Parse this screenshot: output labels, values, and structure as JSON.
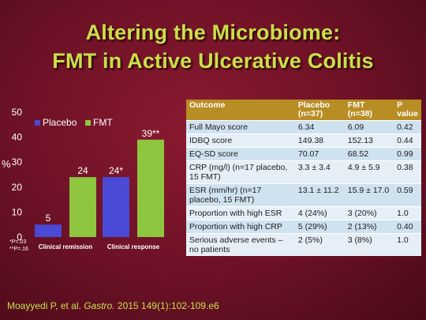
{
  "title_line1": "Altering the Microbiome:",
  "title_line2": "FMT in Active Ulcerative Colitis",
  "chart_data": {
    "type": "bar",
    "categories": [
      "Clinical remission",
      "Clinical response"
    ],
    "series": [
      {
        "name": "Placebo",
        "values": [
          5,
          24
        ],
        "color": "#4a4ad6"
      },
      {
        "name": "FMT",
        "values": [
          24,
          39
        ],
        "color": "#8ec63f"
      }
    ],
    "data_labels": [
      [
        "5",
        "24*"
      ],
      [
        "24",
        "39**"
      ]
    ],
    "ylabel": "%",
    "ylim": [
      0,
      50
    ],
    "yticks": [
      0,
      10,
      20,
      30,
      40,
      50
    ],
    "legend": "top-left",
    "grid": false,
    "footnotes": [
      "*P=.03",
      "**P=.16"
    ]
  },
  "table": {
    "headers": [
      "Outcome",
      "Placebo (n=37)",
      "FMT (n=38)",
      "P value"
    ],
    "rows": [
      [
        "Full Mayo score",
        "6.34",
        "6.09",
        "0.42"
      ],
      [
        "IDBQ score",
        "149.38",
        "152.13",
        "0.44"
      ],
      [
        "EQ-SD score",
        "70.07",
        "68.52",
        "0.99"
      ],
      [
        "CRP (mg/l) (n=17 placebo, 15 FMT)",
        "3.3 ± 3.4",
        "4.9 ± 5.9",
        "0.38"
      ],
      [
        "ESR (mm/hr) (n=17 placebo, 15 FMT)",
        "13.1 ± 11.2",
        "15.9 ± 17.0",
        "0.59"
      ],
      [
        "Proportion with high ESR",
        "4 (24%)",
        "3 (20%)",
        "1.0"
      ],
      [
        "Proportion with high CRP",
        "5 (29%)",
        "2 (13%)",
        "0.40"
      ],
      [
        "Serious adverse events – no patients",
        "2 (5%)",
        "3 (8%)",
        "1.0"
      ]
    ]
  },
  "citation": {
    "prefix": "Moayyedi P, et al.",
    "journal": "Gastro.",
    "suffix": "2015 149(1):102-109.e6"
  }
}
